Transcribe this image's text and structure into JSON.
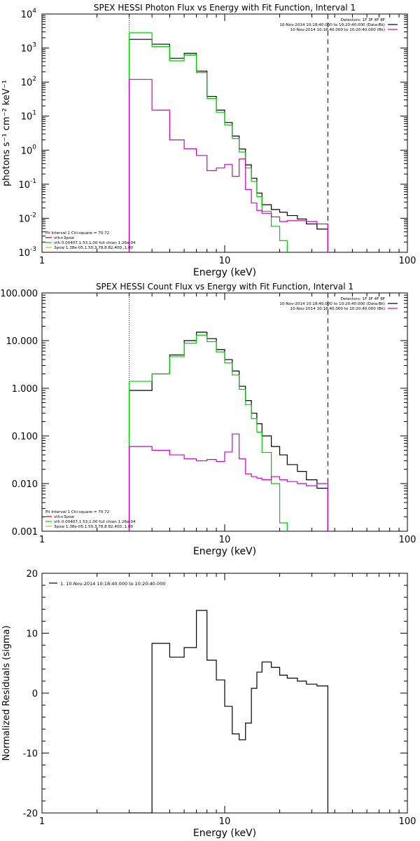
{
  "charts": [
    {
      "type": "line",
      "title": "SPEX HESSI Photon Flux vs Energy with Fit Function, Interval 1",
      "xlabel": "Energy (keV)",
      "ylabel": "photons s⁻¹ cm⁻² keV⁻¹",
      "xscale": "log",
      "yscale": "log",
      "xlim": [
        1,
        100
      ],
      "ylim": [
        0.001,
        10000
      ],
      "xticks": [
        {
          "v": 1,
          "label": "1"
        },
        {
          "v": 10,
          "label": "10"
        },
        {
          "v": 100,
          "label": "100"
        }
      ],
      "yticks": [
        {
          "v": 0.001,
          "base": "10",
          "exp": "-3"
        },
        {
          "v": 0.01,
          "base": "10",
          "exp": "-2"
        },
        {
          "v": 0.1,
          "base": "10",
          "exp": "-1"
        },
        {
          "v": 1,
          "base": "10",
          "exp": "0"
        },
        {
          "v": 10,
          "base": "10",
          "exp": "1"
        },
        {
          "v": 100,
          "base": "10",
          "exp": "2"
        },
        {
          "v": 1000,
          "base": "10",
          "exp": "3"
        },
        {
          "v": 10000,
          "base": "10",
          "exp": "4"
        }
      ],
      "vlines": [
        {
          "x": 3.0,
          "style": "dotted"
        },
        {
          "x": 36.7,
          "style": "dashed"
        }
      ],
      "legend_top": [
        {
          "text": "Detectors: 1F 3F 4F 8F",
          "line": false
        },
        {
          "text": "10-Nov-2014 10:18:40.000 to 10:20:40.000 (Data-Bk)",
          "line": true,
          "color": "#000000"
        },
        {
          "text": "10-Nov-2014 10:18:40.000 to 10:20:40.000 (Bk)",
          "line": true,
          "color": "#cc00cc"
        }
      ],
      "legend_bottom": [
        {
          "text": "Fit Interval 1   Chi-square = 70.72",
          "line": false
        },
        {
          "text": "vth+3pow",
          "line": true,
          "color": "#cc0000"
        },
        {
          "text": "vth 0.00407,1.53,1.00  full chian 1.26e-04",
          "line": true,
          "color": "#00cc00"
        },
        {
          "text": "3pow 1.38e-05,1.50,3.78,8.82,400.,1.00",
          "line": true,
          "color": "#e0b000"
        }
      ],
      "series": [
        {
          "color": "#000000",
          "edges": [
            3.0,
            4.0,
            5.0,
            6.0,
            7.0,
            8.0,
            9.0,
            10.0,
            11.0,
            12.0,
            13.0,
            14.0,
            15.0,
            16.0,
            18.0,
            20.0,
            22.0,
            25.0,
            28.0,
            32.0,
            36.7
          ],
          "values": [
            1800,
            1300,
            500,
            700,
            210,
            38,
            15,
            6.5,
            2.6,
            1.08,
            0.37,
            0.15,
            0.055,
            0.025,
            0.018,
            0.015,
            0.012,
            0.0095,
            0.0068,
            0.0048
          ]
        },
        {
          "color": "#00cc00",
          "edges": [
            3.0,
            4.0,
            5.0,
            6.0,
            7.0,
            8.0,
            9.0,
            10.0,
            11.0,
            12.0,
            13.0,
            14.0,
            15.0,
            16.0,
            18.0,
            20.0,
            22.0
          ],
          "values": [
            2800,
            1100,
            420,
            620,
            190,
            33,
            13,
            5.5,
            2.2,
            0.88,
            0.3,
            0.12,
            0.043,
            0.016,
            0.0058,
            0.0022
          ]
        },
        {
          "color": "#cc00cc",
          "edges": [
            3.0,
            4.0,
            5.0,
            6.0,
            7.0,
            8.0,
            9.0,
            10.0,
            11.0,
            12.0,
            13.0,
            14.0,
            15.0,
            16.0,
            18.0,
            20.0,
            22.0,
            25.0,
            28.0,
            32.0,
            36.7
          ],
          "values": [
            120,
            15,
            2,
            1.1,
            0.7,
            0.25,
            0.3,
            0.38,
            0.17,
            0.55,
            0.07,
            0.028,
            0.017,
            0.014,
            0.011,
            0.008,
            0.0085,
            0.0085,
            0.008,
            0.0068
          ]
        }
      ]
    },
    {
      "type": "line",
      "title": "SPEX HESSI Count Flux vs Energy with Fit Function, Interval 1",
      "xlabel": "Energy (keV)",
      "ylabel": "",
      "xscale": "log",
      "yscale": "log",
      "xlim": [
        1,
        100
      ],
      "ylim": [
        0.001,
        100
      ],
      "xticks": [
        {
          "v": 1,
          "label": "1"
        },
        {
          "v": 10,
          "label": "10"
        },
        {
          "v": 100,
          "label": "100"
        }
      ],
      "yticks": [
        {
          "v": 0.001,
          "label": "0.001"
        },
        {
          "v": 0.01,
          "label": "0.010"
        },
        {
          "v": 0.1,
          "label": "0.100"
        },
        {
          "v": 1,
          "label": "1.000"
        },
        {
          "v": 10,
          "label": "10.000"
        },
        {
          "v": 100,
          "label": "100.000"
        }
      ],
      "vlines": [
        {
          "x": 3.0,
          "style": "dotted"
        },
        {
          "x": 36.7,
          "style": "dashed"
        }
      ],
      "legend_top": [
        {
          "text": "Detectors: 1F 3F 4F 8F",
          "line": false
        },
        {
          "text": "10-Nov-2014 10:18:40.000 to 10:20:40.000 (Data-Bk)",
          "line": true,
          "color": "#000000"
        },
        {
          "text": "10-Nov-2014 10:18:40.000 to 10:20:40.000 (Bk)",
          "line": true,
          "color": "#cc00cc"
        }
      ],
      "legend_bottom": [
        {
          "text": "Fit Interval 1   Chi-square = 70.72",
          "line": false
        },
        {
          "text": "vth+3pow",
          "line": true,
          "color": "#cc0000"
        },
        {
          "text": "vth 0.00407,1.53,1.00  full chian 1.26e-04",
          "line": true,
          "color": "#00cc00"
        },
        {
          "text": "3pow 1.38e-05,1.50,3.78,8.82,400.,1.00",
          "line": true,
          "color": "#e0b000"
        }
      ],
      "series": [
        {
          "color": "#000000",
          "edges": [
            3.0,
            4.0,
            5.0,
            6.0,
            7.0,
            8.0,
            9.0,
            10.0,
            11.0,
            12.0,
            13.0,
            14.0,
            15.0,
            16.0,
            18.0,
            20.0,
            22.0,
            25.0,
            28.0,
            32.0,
            36.7
          ],
          "values": [
            0.9,
            2.0,
            5.0,
            10.0,
            15.0,
            11.0,
            6.5,
            4.0,
            2.3,
            1.1,
            0.55,
            0.3,
            0.18,
            0.1,
            0.06,
            0.04,
            0.025,
            0.018,
            0.012,
            0.008
          ]
        },
        {
          "color": "#00cc00",
          "edges": [
            3.0,
            4.0,
            5.0,
            6.0,
            7.0,
            8.0,
            9.0,
            10.0,
            11.0,
            12.0,
            13.0,
            14.0,
            15.0,
            16.0,
            18.0,
            20.0,
            22.0
          ],
          "values": [
            1.4,
            2.0,
            4.6,
            8.8,
            13.0,
            9.5,
            5.8,
            3.4,
            1.9,
            0.95,
            0.45,
            0.23,
            0.12,
            0.045,
            0.01,
            0.0015
          ]
        },
        {
          "color": "#cc00cc",
          "edges": [
            3.0,
            4.0,
            5.0,
            6.0,
            7.0,
            8.0,
            9.0,
            10.0,
            11.0,
            12.0,
            13.0,
            14.0,
            15.0,
            16.0,
            18.0,
            20.0,
            22.0,
            25.0,
            28.0,
            32.0,
            36.7
          ],
          "values": [
            0.06,
            0.05,
            0.04,
            0.033,
            0.03,
            0.032,
            0.029,
            0.046,
            0.11,
            0.033,
            0.016,
            0.014,
            0.013,
            0.012,
            0.014,
            0.012,
            0.011,
            0.01,
            0.009,
            0.01
          ]
        }
      ]
    },
    {
      "type": "line",
      "title": "",
      "xlabel": "Energy (keV)",
      "ylabel": "Normalized Residuals (sigma)",
      "xscale": "log",
      "yscale": "linear",
      "xlim": [
        1,
        100
      ],
      "ylim": [
        -20,
        20
      ],
      "xticks": [
        {
          "v": 1,
          "label": "1"
        },
        {
          "v": 10,
          "label": "10"
        },
        {
          "v": 100,
          "label": "100"
        }
      ],
      "yticks": [
        {
          "v": -20,
          "label": "-20"
        },
        {
          "v": -10,
          "label": "-10"
        },
        {
          "v": 0,
          "label": "0"
        },
        {
          "v": 10,
          "label": "10"
        },
        {
          "v": 20,
          "label": "20"
        }
      ],
      "vlines": [],
      "legend_top": [
        {
          "text": "1. 10-Nov-2014 10:18:40.000 to 10:20:40.000",
          "line": true,
          "color": "#000000"
        }
      ],
      "legend_bottom": [],
      "series": [
        {
          "color": "#000000",
          "baseline": -20,
          "edges": [
            3.0,
            4.0,
            5.0,
            6.0,
            7.0,
            8.0,
            9.0,
            10.0,
            11.0,
            12.0,
            13.0,
            14.0,
            15.0,
            16.0,
            18.0,
            20.0,
            22.0,
            25.0,
            28.0,
            32.0,
            36.7
          ],
          "values": [
            -20,
            8.3,
            6.0,
            7.6,
            13.8,
            5.5,
            2.2,
            -2.2,
            -6.8,
            -7.8,
            -5.0,
            0.8,
            3.5,
            5.2,
            4.3,
            3.0,
            2.5,
            2.0,
            1.5,
            1.2
          ]
        }
      ]
    }
  ]
}
